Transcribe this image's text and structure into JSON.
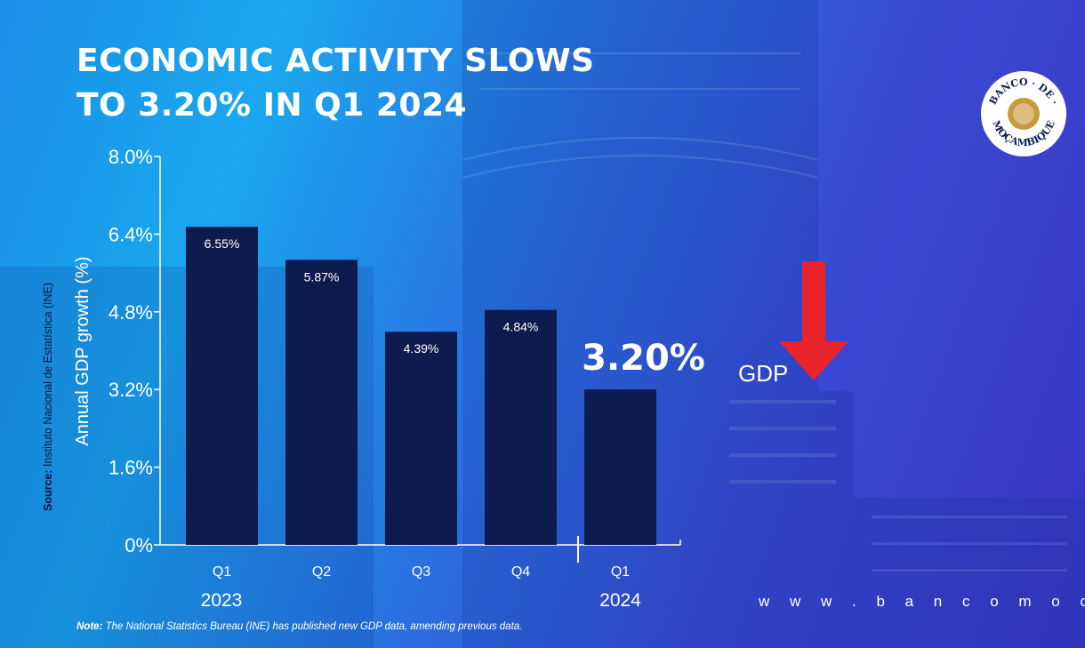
{
  "title_line1": "ECONOMIC ACTIVITY SLOWS",
  "title_line2": "TO 3.20% IN Q1 2024",
  "source_label": "Source:",
  "source_text": "Instituto Nacional de Estatística (INE)",
  "note_label": "Note:",
  "note_text": "The National Statistics Bureau (INE) has published new GDP data, amending previous data.",
  "website": "w w w . b a n c o m o c . m z",
  "logo_text_top": "BANCO · DE ·",
  "logo_text_bottom": "MOÇAMBIQUE",
  "indicator": {
    "label": "GDP",
    "direction": "down",
    "color": "#e8232a"
  },
  "colors": {
    "bar": "#0d1b4f",
    "text": "#ffffff",
    "arrow": "#e8232a"
  },
  "chart_data": {
    "type": "bar",
    "categories": [
      "Q1",
      "Q2",
      "Q3",
      "Q4",
      "Q1"
    ],
    "groups": [
      {
        "label": "2023",
        "categories": [
          "Q1",
          "Q2",
          "Q3",
          "Q4"
        ]
      },
      {
        "label": "2024",
        "categories": [
          "Q1"
        ]
      }
    ],
    "values": [
      6.55,
      5.87,
      4.39,
      4.84,
      3.2
    ],
    "data_labels": [
      "6.55%",
      "5.87%",
      "4.39%",
      "4.84%",
      "3.20%"
    ],
    "ylabel": "Annual GDP growth (%)",
    "ylim": [
      0,
      8
    ],
    "yticks": [
      0,
      1.6,
      3.2,
      4.8,
      6.4,
      8.0
    ],
    "ytick_labels": [
      "0%",
      "1.6%",
      "3.2%",
      "4.8%",
      "6.4%",
      "8.0%"
    ],
    "highlight_index": 4
  }
}
